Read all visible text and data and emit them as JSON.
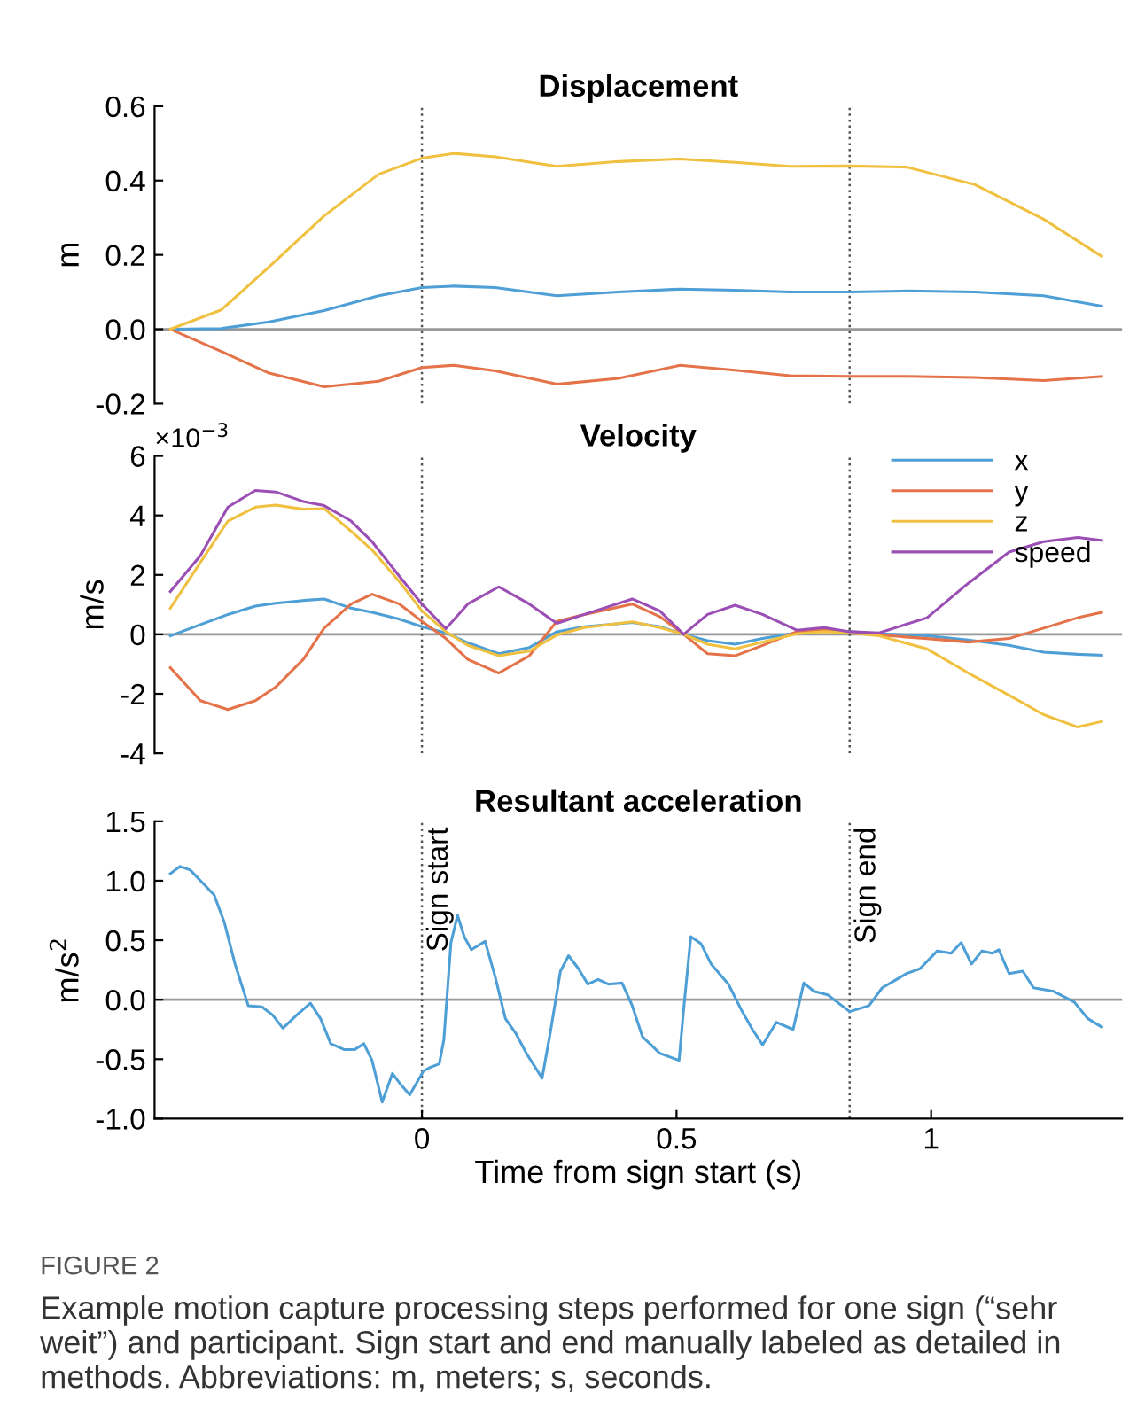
{
  "chart_data": [
    {
      "type": "line",
      "title": "Displacement",
      "ylabel": "m",
      "tick_labels": "y",
      "grid": false,
      "legend": false,
      "xlim": [
        -0.525,
        1.375
      ],
      "ylim": [
        -0.2,
        0.6
      ],
      "yticks": [
        {
          "value": -0.2,
          "label": "-0.2"
        },
        {
          "value": 0,
          "label": "0.0"
        },
        {
          "value": 0.2,
          "label": "0.2"
        },
        {
          "value": 0.4,
          "label": "0.4"
        },
        {
          "value": 0.6,
          "label": "0.6"
        }
      ],
      "x": [
        -0.494,
        -0.394,
        -0.3,
        -0.192,
        -0.085,
        0,
        0.063,
        0.144,
        0.265,
        0.386,
        0.507,
        0.615,
        0.723,
        0.84,
        0.952,
        1.086,
        1.221,
        1.335
      ],
      "series": [
        {
          "color": "#4d9fd6",
          "values": [
            0,
            0.002,
            0.02,
            0.05,
            0.09,
            0.112,
            0.116,
            0.112,
            0.09,
            0.1,
            0.108,
            0.105,
            0.1,
            0.1,
            0.103,
            0.1,
            0.09,
            0.062
          ]
        },
        {
          "color": "#e5734a",
          "values": [
            0,
            -0.06,
            -0.118,
            -0.155,
            -0.14,
            -0.103,
            -0.097,
            -0.112,
            -0.148,
            -0.132,
            -0.097,
            -0.11,
            -0.125,
            -0.127,
            -0.127,
            -0.13,
            -0.138,
            -0.127
          ]
        },
        {
          "color": "#f0c040",
          "values": [
            0,
            0.052,
            0.168,
            0.305,
            0.417,
            0.46,
            0.473,
            0.464,
            0.438,
            0.451,
            0.458,
            0.449,
            0.438,
            0.439,
            0.436,
            0.389,
            0.296,
            0.196
          ]
        }
      ],
      "ref_lines": [
        {
          "axis": "y",
          "value": 0,
          "color": "#999999",
          "line_style": "solid"
        },
        {
          "axis": "x",
          "value": 0,
          "color": "#555555",
          "line_style": "dotted"
        },
        {
          "axis": "x",
          "value": 0.84,
          "color": "#555555",
          "line_style": "dotted"
        }
      ]
    },
    {
      "type": "line",
      "title": "Velocity",
      "ylabel": "m/s",
      "tick_labels": "y",
      "grid": false,
      "legend": "top right",
      "xlim": [
        -0.525,
        1.375
      ],
      "ylim": [
        -4,
        6
      ],
      "yticks": [
        -4,
        -2,
        0,
        2,
        4,
        6
      ],
      "annotations": [
        "×10$^{−3}$"
      ],
      "x": [
        -0.494,
        -0.435,
        -0.381,
        -0.327,
        -0.287,
        -0.233,
        -0.192,
        -0.139,
        -0.098,
        -0.044,
        0,
        0.047,
        0.09,
        0.151,
        0.211,
        0.265,
        0.319,
        0.413,
        0.467,
        0.514,
        0.561,
        0.615,
        0.669,
        0.736,
        0.79,
        0.84,
        0.898,
        0.992,
        1.073,
        1.153,
        1.221,
        1.288,
        1.335
      ],
      "series": [
        {
          "name": "x",
          "color": "#4d9fd6",
          "values": [
            -0.05,
            0.33,
            0.67,
            0.95,
            1.05,
            1.14,
            1.19,
            0.88,
            0.74,
            0.51,
            0.26,
            0.05,
            -0.28,
            -0.65,
            -0.44,
            0.09,
            0.26,
            0.4,
            0.26,
            0,
            -0.21,
            -0.33,
            -0.14,
            0.05,
            0.14,
            0.09,
            0.02,
            -0.05,
            -0.19,
            -0.37,
            -0.6,
            -0.67,
            -0.7
          ]
        },
        {
          "name": "y",
          "color": "#e5734a",
          "values": [
            -1.12,
            -2.23,
            -2.53,
            -2.23,
            -1.77,
            -0.84,
            0.21,
            1.02,
            1.35,
            1.02,
            0.44,
            -0.14,
            -0.84,
            -1.3,
            -0.72,
            0.44,
            0.67,
            1.02,
            0.6,
            0,
            -0.65,
            -0.72,
            -0.37,
            0.09,
            0.16,
            0.05,
            -0.02,
            -0.14,
            -0.26,
            -0.14,
            0.21,
            0.56,
            0.74
          ]
        },
        {
          "name": "z",
          "color": "#f0c040",
          "values": [
            0.88,
            2.42,
            3.81,
            4.28,
            4.35,
            4.21,
            4.23,
            3.47,
            2.84,
            1.77,
            0.79,
            0.09,
            -0.37,
            -0.72,
            -0.56,
            -0.02,
            0.23,
            0.42,
            0.23,
            0,
            -0.33,
            -0.49,
            -0.26,
            0.02,
            0.09,
            0.05,
            -0.05,
            -0.49,
            -1.3,
            -2.05,
            -2.7,
            -3.12,
            -2.93
          ]
        },
        {
          "name": "speed",
          "color": "#9b4fb5",
          "values": [
            1.44,
            2.65,
            4.28,
            4.84,
            4.79,
            4.47,
            4.33,
            3.81,
            3.12,
            1.95,
            1.02,
            0.19,
            1.02,
            1.6,
            1.02,
            0.37,
            0.67,
            1.19,
            0.79,
            0,
            0.67,
            0.98,
            0.67,
            0.14,
            0.23,
            0.09,
            0.05,
            0.56,
            1.72,
            2.77,
            3.12,
            3.26,
            3.16
          ]
        }
      ],
      "ref_lines": [
        {
          "axis": "y",
          "value": 0,
          "color": "#999999",
          "line_style": "solid"
        },
        {
          "axis": "x",
          "value": 0,
          "color": "#555555",
          "line_style": "dotted"
        },
        {
          "axis": "x",
          "value": 0.84,
          "color": "#555555",
          "line_style": "dotted"
        }
      ]
    },
    {
      "type": "line",
      "title": "Resultant acceleration",
      "ylabel": "m/s$^{2}$",
      "xlabel": "Time from sign start (s)",
      "grid": false,
      "legend": false,
      "xlim": [
        -0.525,
        1.375
      ],
      "xticks": [
        0,
        0.5,
        1
      ],
      "ylim": [
        -1,
        1.5
      ],
      "yticks": [
        {
          "value": -1,
          "label": "-1.0"
        },
        {
          "value": -0.5,
          "label": "-0.5"
        },
        {
          "value": 0,
          "label": "0.0"
        },
        {
          "value": 0.5,
          "label": "0.5"
        },
        {
          "value": 1,
          "label": "1.0"
        },
        {
          "value": 1.5,
          "label": "1.5"
        }
      ],
      "x": [
        -0.494,
        -0.475,
        -0.455,
        -0.428,
        -0.408,
        -0.388,
        -0.367,
        -0.341,
        -0.314,
        -0.293,
        -0.273,
        -0.246,
        -0.219,
        -0.199,
        -0.179,
        -0.152,
        -0.132,
        -0.114,
        -0.098,
        -0.078,
        -0.058,
        -0.044,
        -0.024,
        0.003,
        0.016,
        0.034,
        0.043,
        0.057,
        0.07,
        0.083,
        0.097,
        0.124,
        0.144,
        0.164,
        0.184,
        0.205,
        0.236,
        0.252,
        0.272,
        0.288,
        0.306,
        0.326,
        0.346,
        0.366,
        0.393,
        0.413,
        0.433,
        0.467,
        0.505,
        0.514,
        0.528,
        0.548,
        0.568,
        0.602,
        0.629,
        0.649,
        0.669,
        0.696,
        0.729,
        0.75,
        0.77,
        0.797,
        0.84,
        0.878,
        0.904,
        0.952,
        0.978,
        1.012,
        1.039,
        1.059,
        1.079,
        1.1,
        1.12,
        1.133,
        1.153,
        1.18,
        1.201,
        1.241,
        1.281,
        1.308,
        1.335
      ],
      "series": [
        {
          "color": "#4d9fd6",
          "values": [
            1.06,
            1.12,
            1.09,
            0.97,
            0.88,
            0.65,
            0.3,
            -0.05,
            -0.06,
            -0.13,
            -0.24,
            -0.13,
            -0.03,
            -0.16,
            -0.37,
            -0.42,
            -0.42,
            -0.37,
            -0.51,
            -0.86,
            -0.62,
            -0.7,
            -0.8,
            -0.6,
            -0.57,
            -0.54,
            -0.34,
            0.48,
            0.71,
            0.53,
            0.42,
            0.49,
            0.19,
            -0.16,
            -0.28,
            -0.45,
            -0.66,
            -0.28,
            0.24,
            0.37,
            0.27,
            0.13,
            0.17,
            0.13,
            0.14,
            -0.05,
            -0.31,
            -0.45,
            -0.51,
            -0.08,
            0.53,
            0.47,
            0.3,
            0.13,
            -0.1,
            -0.25,
            -0.38,
            -0.19,
            -0.25,
            0.14,
            0.07,
            0.04,
            -0.1,
            -0.05,
            0.1,
            0.22,
            0.26,
            0.41,
            0.39,
            0.48,
            0.3,
            0.41,
            0.39,
            0.42,
            0.22,
            0.24,
            0.1,
            0.07,
            -0.02,
            -0.16,
            -0.23
          ]
        }
      ],
      "ref_lines": [
        {
          "axis": "y",
          "value": 0,
          "color": "#999999",
          "line_style": "solid"
        },
        {
          "axis": "x",
          "value": 0,
          "color": "#555555",
          "line_style": "dotted",
          "label": "Sign start"
        },
        {
          "axis": "x",
          "value": 0.84,
          "color": "#555555",
          "line_style": "dotted",
          "label": "Sign end"
        }
      ],
      "annotations": [
        "FIGURE 2",
        "Example motion capture processing steps performed for one sign (“sehr weit”) and participant. Sign start and end manually labeled as detailed in methods. Abbreviations: m, meters; s, seconds."
      ]
    }
  ]
}
